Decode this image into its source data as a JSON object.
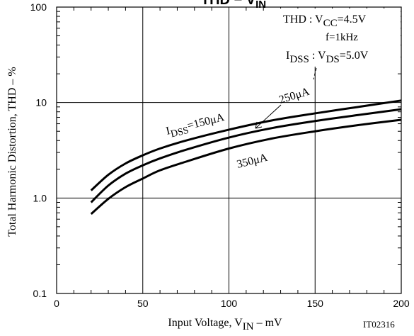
{
  "chart_data": {
    "type": "line",
    "title": "THD − V",
    "title_sub": "IN",
    "xlabel": "Input Voltage, V",
    "xlabel_sub": "IN",
    "xlabel_suffix": " – mV",
    "ylabel": "Total Harmonic Distortion, THD  –  %",
    "figure_id": "IT02316",
    "x_scale": "linear",
    "y_scale": "log",
    "xlim": [
      0,
      200
    ],
    "ylim": [
      0.1,
      100
    ],
    "x_ticks": [
      0,
      50,
      100,
      150,
      200
    ],
    "x_tick_labels": [
      "0",
      "50",
      "100",
      "150",
      "200"
    ],
    "y_ticks": [
      0.1,
      1.0,
      10,
      100
    ],
    "y_tick_labels": [
      "0.1",
      "1.0",
      "10",
      "100"
    ],
    "grid": true,
    "conditions": {
      "thd_prefix": "THD :  V",
      "thd_sub": "CC",
      "thd_value": "=4.5V",
      "freq": "f=1kHz",
      "idss_prefix": "I",
      "idss_sub": "DSS",
      "idss_mid": " : V",
      "vds_sub": "DS",
      "vds_value": "=5.0V"
    },
    "series": [
      {
        "name": "150μA",
        "label_prefix": "I",
        "label_sub": "DSS",
        "label_value": "=150μA",
        "x": [
          20,
          30,
          40,
          50,
          60,
          75,
          100,
          125,
          150,
          175,
          200
        ],
        "y": [
          1.2,
          1.75,
          2.3,
          2.8,
          3.3,
          4.0,
          5.2,
          6.5,
          7.7,
          9.0,
          10.5
        ]
      },
      {
        "name": "250μA",
        "label_value": "250μA",
        "x": [
          20,
          30,
          40,
          50,
          60,
          75,
          100,
          125,
          150,
          175,
          200
        ],
        "y": [
          0.9,
          1.35,
          1.8,
          2.2,
          2.6,
          3.2,
          4.3,
          5.4,
          6.4,
          7.4,
          8.5
        ]
      },
      {
        "name": "350μA",
        "label_value": "350μA",
        "x": [
          20,
          30,
          40,
          50,
          60,
          75,
          100,
          125,
          150,
          175,
          200
        ],
        "y": [
          0.68,
          0.98,
          1.3,
          1.6,
          1.95,
          2.4,
          3.3,
          4.2,
          5.0,
          5.8,
          6.6
        ]
      }
    ]
  }
}
